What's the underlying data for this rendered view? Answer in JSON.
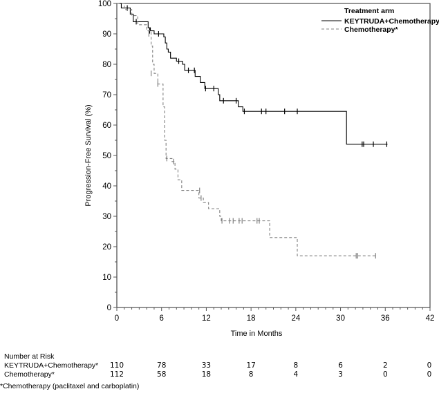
{
  "chart_data": {
    "type": "line",
    "title": "",
    "xlabel": "Time in Months",
    "ylabel": "Progression-Free Survival (%)",
    "xlim": [
      0,
      42
    ],
    "ylim": [
      0,
      100
    ],
    "x_ticks": [
      0,
      6,
      12,
      18,
      24,
      30,
      36,
      42
    ],
    "y_ticks": [
      0,
      10,
      20,
      30,
      40,
      50,
      60,
      70,
      80,
      90,
      100
    ],
    "grid": false,
    "legend": {
      "title": "Treatment arm",
      "placement": "top-right",
      "entries": [
        "KEYTRUDA+Chemotherapy*",
        "Chemotherapy*"
      ]
    },
    "series": [
      {
        "name": "KEYTRUDA+Chemotherapy*",
        "style": "solid",
        "color": "#000000",
        "steps": [
          [
            0,
            100
          ],
          [
            0.6,
            98.5
          ],
          [
            1.8,
            96.5
          ],
          [
            2.2,
            94
          ],
          [
            4.2,
            92
          ],
          [
            4.5,
            91
          ],
          [
            5.0,
            90
          ],
          [
            6.3,
            89
          ],
          [
            6.5,
            87
          ],
          [
            6.7,
            85
          ],
          [
            6.9,
            84
          ],
          [
            7.2,
            82
          ],
          [
            8.0,
            81
          ],
          [
            8.8,
            80
          ],
          [
            9.1,
            78
          ],
          [
            10.5,
            76
          ],
          [
            11.2,
            74
          ],
          [
            11.8,
            72
          ],
          [
            13.6,
            70
          ],
          [
            13.8,
            68
          ],
          [
            16.3,
            66
          ],
          [
            16.9,
            64.5
          ],
          [
            30.8,
            53.7
          ],
          [
            36.3,
            53.7
          ]
        ],
        "censored": [
          [
            1.4,
            98.5
          ],
          [
            2.6,
            94
          ],
          [
            4.4,
            91
          ],
          [
            5.6,
            90
          ],
          [
            8.3,
            81
          ],
          [
            9.6,
            78
          ],
          [
            10.4,
            78
          ],
          [
            11.9,
            72
          ],
          [
            13.0,
            72
          ],
          [
            14.3,
            68
          ],
          [
            16.0,
            68
          ],
          [
            17.1,
            64.5
          ],
          [
            19.4,
            64.5
          ],
          [
            20.0,
            64.5
          ],
          [
            22.5,
            64.5
          ],
          [
            24.2,
            64.5
          ],
          [
            32.9,
            53.7
          ],
          [
            33.1,
            53.7
          ],
          [
            34.4,
            53.7
          ],
          [
            36.2,
            53.7
          ]
        ]
      },
      {
        "name": "Chemotherapy*",
        "style": "dashed",
        "color": "#808080",
        "steps": [
          [
            0,
            100
          ],
          [
            1.0,
            98
          ],
          [
            2.0,
            96
          ],
          [
            2.8,
            93
          ],
          [
            4.0,
            91
          ],
          [
            4.6,
            86
          ],
          [
            4.8,
            80
          ],
          [
            5.0,
            77
          ],
          [
            5.5,
            73.5
          ],
          [
            6.2,
            66
          ],
          [
            6.4,
            55
          ],
          [
            6.6,
            49
          ],
          [
            7.4,
            48
          ],
          [
            7.8,
            45.5
          ],
          [
            8.2,
            42
          ],
          [
            8.7,
            38.5
          ],
          [
            11.0,
            36
          ],
          [
            11.6,
            34.5
          ],
          [
            12.3,
            32.5
          ],
          [
            13.8,
            30
          ],
          [
            14.0,
            28.5
          ],
          [
            20.5,
            23
          ],
          [
            24.2,
            17
          ],
          [
            34.7,
            17
          ]
        ],
        "censored": [
          [
            4.3,
            90
          ],
          [
            4.6,
            77
          ],
          [
            5.5,
            73.5
          ],
          [
            6.7,
            49
          ],
          [
            7.6,
            48
          ],
          [
            11.1,
            38.5
          ],
          [
            11.3,
            36
          ],
          [
            14.1,
            28.5
          ],
          [
            15.1,
            28.5
          ],
          [
            15.6,
            28.5
          ],
          [
            16.4,
            28.5
          ],
          [
            16.8,
            28.5
          ],
          [
            18.8,
            28.5
          ],
          [
            19.1,
            28.5
          ],
          [
            32.1,
            17
          ],
          [
            32.3,
            17
          ],
          [
            34.7,
            17
          ]
        ]
      }
    ],
    "risk_table": {
      "title": "Number at Risk",
      "times": [
        0,
        6,
        12,
        18,
        24,
        30,
        36,
        42
      ],
      "rows": [
        {
          "label": "KEYTRUDA+Chemotherapy*",
          "values": [
            "110",
            "78",
            "33",
            "17",
            "8",
            "6",
            "2",
            "0"
          ]
        },
        {
          "label": "Chemotherapy*",
          "values": [
            "112",
            "58",
            "18",
            "8",
            "4",
            "3",
            "0",
            "0"
          ]
        }
      ]
    },
    "footnote": "*Chemotherapy (paclitaxel and carboplatin)"
  }
}
